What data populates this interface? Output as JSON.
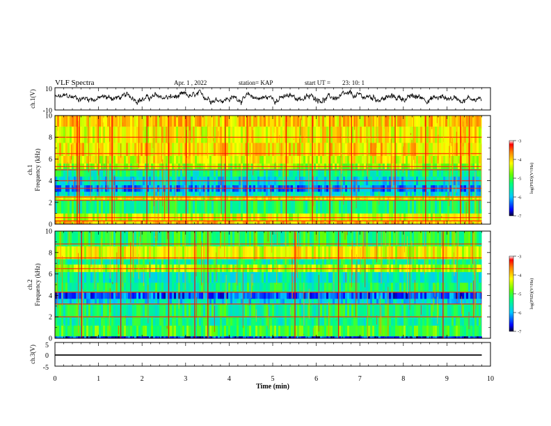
{
  "chart_data": {
    "type": "heatmap",
    "title": "VLF Spectra",
    "date": "Apr. 1  , 2022",
    "station": "station= KAP",
    "start_ut_label": "start  UT  =",
    "start_ut_value": "23: 10: 1",
    "xlabel": "Time  (min)",
    "xlim": [
      0,
      10
    ],
    "x_ticks": [
      "0",
      "1",
      "2",
      "3",
      "4",
      "5",
      "6",
      "7",
      "8",
      "9",
      "10"
    ],
    "data_extent_min": 9.8,
    "panels": [
      {
        "id": "ch1_waveform",
        "kind": "line",
        "ylabel": "ch.1(V)",
        "ylim": [
          -10,
          10
        ],
        "y_ticks": [
          "10",
          "-10"
        ],
        "description_values": {
          "mean": 1,
          "amplitude": 4
        }
      },
      {
        "id": "ch1_spectrogram",
        "kind": "heatmap",
        "ylabel_line1": "ch.1",
        "ylabel_line2": "Frequency  (kHz)",
        "ylim": [
          0,
          10
        ],
        "y_ticks": [
          "0",
          "2",
          "4",
          "6",
          "8",
          "10"
        ],
        "colorbar": {
          "label": "log(PSD)(V²/Hz)",
          "range": [
            -7,
            -3
          ],
          "ticks": [
            "-3",
            "-4",
            "-5",
            "-6",
            "-7"
          ]
        },
        "bands_khz": [
          {
            "from": 0,
            "to": 0.3,
            "log_psd": -4.0
          },
          {
            "from": 0.3,
            "to": 1.0,
            "log_psd": -4.4
          },
          {
            "from": 1.0,
            "to": 2.2,
            "log_psd": -5.3
          },
          {
            "from": 2.2,
            "to": 2.6,
            "log_psd": -4.3
          },
          {
            "from": 2.6,
            "to": 3.0,
            "log_psd": -5.7
          },
          {
            "from": 3.0,
            "to": 3.6,
            "log_psd": -6.2
          },
          {
            "from": 3.6,
            "to": 4.4,
            "log_psd": -5.8
          },
          {
            "from": 4.4,
            "to": 5.1,
            "log_psd": -5.4
          },
          {
            "from": 5.1,
            "to": 5.6,
            "log_psd": -4.6
          },
          {
            "from": 5.6,
            "to": 6.3,
            "log_psd": -4.3
          },
          {
            "from": 6.3,
            "to": 7.5,
            "log_psd": -4.1
          },
          {
            "from": 7.5,
            "to": 9.0,
            "log_psd": -4.2
          },
          {
            "from": 9.0,
            "to": 10.0,
            "log_psd": -4.0
          }
        ],
        "lines_khz": [
          0.3,
          0.6,
          2.2,
          2.5,
          3.3,
          4.0,
          5.0,
          5.3,
          6.5,
          8.0
        ],
        "bursts_min": [
          0.5,
          0.55,
          1.3,
          2.1,
          2.6,
          3.0,
          3.9,
          4.4,
          5.3,
          5.9,
          6.3,
          6.8,
          7.8,
          8.5,
          9.3,
          9.5
        ]
      },
      {
        "id": "ch2_spectrogram",
        "kind": "heatmap",
        "ylabel_line1": "ch.2",
        "ylabel_line2": "Frequency  (kHz)",
        "ylim": [
          0,
          10
        ],
        "y_ticks": [
          "0",
          "2",
          "4",
          "6",
          "8",
          "10"
        ],
        "colorbar": {
          "label": "log(PSD)(V²/Hz)",
          "range": [
            -7,
            -3
          ],
          "ticks": [
            "-3",
            "-4",
            "-5",
            "-6",
            "-7"
          ]
        },
        "bands_khz": [
          {
            "from": 0,
            "to": 0.2,
            "log_psd": -6.5
          },
          {
            "from": 0.2,
            "to": 1.2,
            "log_psd": -5.0
          },
          {
            "from": 1.2,
            "to": 2.0,
            "log_psd": -5.4
          },
          {
            "from": 2.0,
            "to": 3.2,
            "log_psd": -5.3
          },
          {
            "from": 3.2,
            "to": 3.7,
            "log_psd": -5.8
          },
          {
            "from": 3.7,
            "to": 4.3,
            "log_psd": -6.4
          },
          {
            "from": 4.3,
            "to": 5.2,
            "log_psd": -5.3
          },
          {
            "from": 5.2,
            "to": 6.2,
            "log_psd": -5.6
          },
          {
            "from": 6.2,
            "to": 6.9,
            "log_psd": -4.6
          },
          {
            "from": 6.9,
            "to": 7.4,
            "log_psd": -5.4
          },
          {
            "from": 7.4,
            "to": 8.6,
            "log_psd": -4.3
          },
          {
            "from": 8.6,
            "to": 10.0,
            "log_psd": -5.2
          }
        ],
        "lines_khz": [
          2.0,
          3.2,
          4.3,
          6.5,
          7.5,
          8.8
        ],
        "bursts_min": [
          0.6,
          1.5,
          2.6,
          3.2,
          3.5,
          5.5,
          6.5,
          8.9
        ]
      },
      {
        "id": "ch3_waveform",
        "kind": "line",
        "ylabel": "ch.3(V)",
        "ylim": [
          -5,
          5
        ],
        "y_ticks": [
          "5",
          "0",
          "-5"
        ],
        "description_values": {
          "level": -0.3,
          "band_halfwidth": 0.25
        }
      }
    ]
  }
}
